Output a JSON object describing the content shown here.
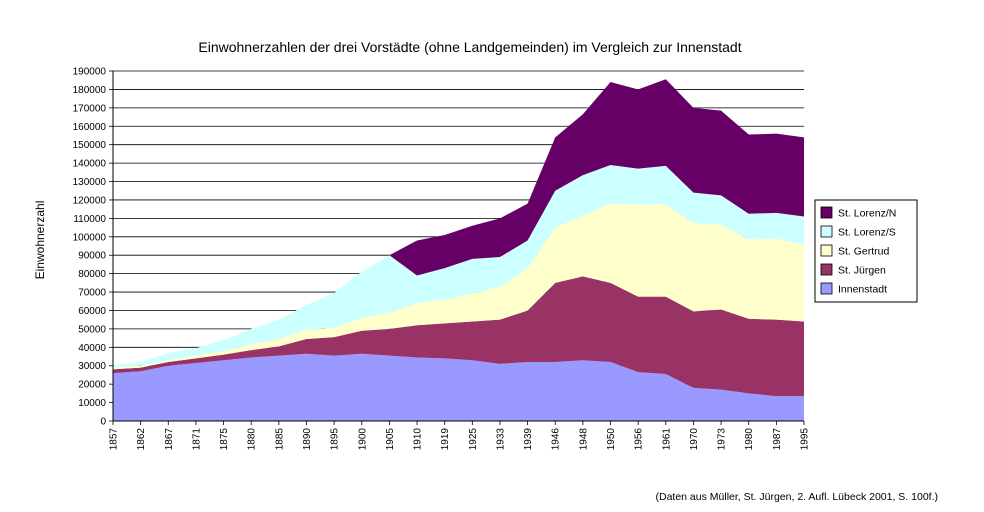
{
  "chart_data": {
    "type": "area",
    "stacked": true,
    "title": "Einwohnerzahlen der drei Vorstädte (ohne Landgemeinden) im Vergleich zur Innenstadt",
    "ylabel": "Einwohnerzahl",
    "xlabel": "",
    "ylim": [
      0,
      190000
    ],
    "ytick_step": 10000,
    "grid": true,
    "legend_position": "right",
    "x": [
      "1857",
      "1862",
      "1867",
      "1871",
      "1875",
      "1880",
      "1885",
      "1890",
      "1895",
      "1900",
      "1905",
      "1910",
      "1919",
      "1925",
      "1933",
      "1939",
      "1946",
      "1948",
      "1950",
      "1956",
      "1961",
      "1970",
      "1973",
      "1980",
      "1987",
      "1995"
    ],
    "series": [
      {
        "name": "Innenstadt",
        "color": "#9999ff",
        "values": [
          26000,
          27000,
          30000,
          31500,
          33000,
          34500,
          35500,
          36500,
          35500,
          36500,
          35500,
          34500,
          34000,
          33000,
          31000,
          32000,
          32000,
          33000,
          32000,
          26500,
          25500,
          18000,
          17000,
          15000,
          13500,
          13500
        ]
      },
      {
        "name": "St. Jürgen",
        "color": "#993366",
        "values": [
          2000,
          2000,
          2000,
          2500,
          3000,
          4000,
          5000,
          8000,
          10000,
          12500,
          14500,
          17500,
          19000,
          21000,
          24000,
          28000,
          43000,
          45500,
          43000,
          41000,
          42000,
          41500,
          43500,
          40500,
          41500,
          40500
        ]
      },
      {
        "name": "St. Gertrud",
        "color": "#ffffcc",
        "values": [
          1000,
          1000,
          1000,
          1500,
          2000,
          3000,
          4000,
          5000,
          5000,
          7000,
          9000,
          12000,
          13000,
          15000,
          18000,
          23000,
          30000,
          33000,
          43000,
          50000,
          50000,
          48000,
          46000,
          43000,
          44000,
          41500
        ]
      },
      {
        "name": "St. Lorenz/S",
        "color": "#ccffff",
        "values": [
          1500,
          2000,
          4000,
          4000,
          6000,
          8500,
          10500,
          13500,
          19000,
          25000,
          31000,
          15000,
          17000,
          19000,
          16000,
          15000,
          20000,
          22000,
          21000,
          19500,
          21000,
          16500,
          16000,
          14000,
          14000,
          15500
        ]
      },
      {
        "name": "St. Lorenz/N",
        "color": "#660066",
        "values": [
          0,
          0,
          0,
          0,
          0,
          0,
          0,
          0,
          0,
          0,
          0,
          19000,
          18000,
          18000,
          21000,
          20000,
          29000,
          33000,
          45000,
          43000,
          47000,
          46000,
          46000,
          43000,
          43000,
          43000
        ]
      }
    ],
    "legend_order": [
      "St. Lorenz/N",
      "St. Lorenz/S",
      "St. Gertrud",
      "St. Jürgen",
      "Innenstadt"
    ]
  },
  "footer": {
    "source": "(Daten aus Müller, St. Jürgen, 2. Aufl. Lübeck 2001, S. 100f.)"
  }
}
